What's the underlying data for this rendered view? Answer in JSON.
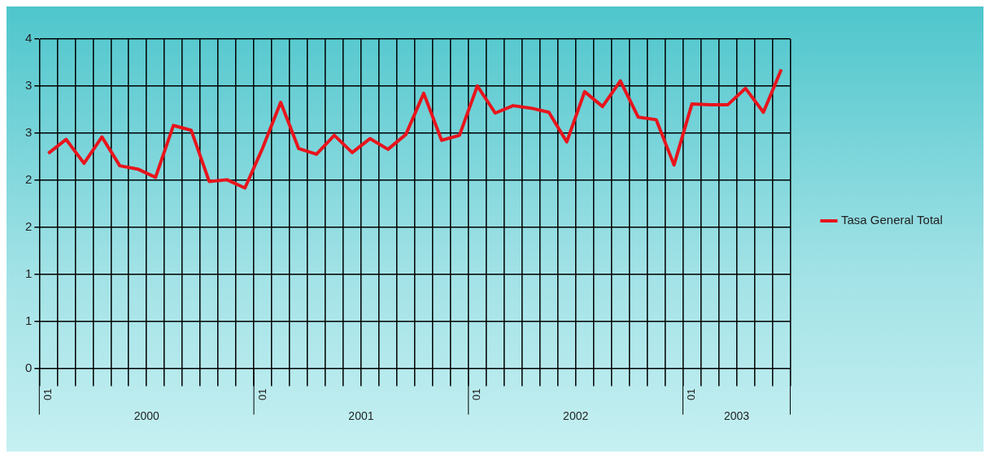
{
  "chart_data": {
    "type": "line",
    "categories": [
      "01",
      null,
      null,
      null,
      null,
      null,
      null,
      null,
      null,
      null,
      null,
      null,
      "01",
      null,
      null,
      null,
      null,
      null,
      null,
      null,
      null,
      null,
      null,
      null,
      "01",
      null,
      null,
      null,
      null,
      null,
      null,
      null,
      null,
      null,
      null,
      null,
      "01",
      null,
      null,
      null,
      null,
      null
    ],
    "series": [
      {
        "name": "Tasa General Total",
        "color": "#e8141c",
        "values": [
          2.61,
          2.78,
          2.49,
          2.81,
          2.46,
          2.42,
          2.32,
          2.95,
          2.89,
          2.27,
          2.29,
          2.19,
          2.68,
          3.23,
          2.67,
          2.6,
          2.83,
          2.62,
          2.79,
          2.66,
          2.84,
          3.34,
          2.77,
          2.83,
          3.43,
          3.1,
          3.19,
          3.16,
          3.11,
          2.75,
          3.36,
          3.18,
          3.49,
          3.05,
          3.02,
          2.47,
          3.21,
          3.2,
          3.2,
          3.4,
          3.11,
          3.63
        ]
      }
    ],
    "ylim": [
      0,
      4
    ],
    "yticks": [
      0,
      {
        "value": 0.57,
        "label": "1"
      },
      {
        "value": 1.14,
        "label": "1"
      },
      {
        "value": 1.71,
        "label": "2"
      },
      {
        "value": 2.29,
        "label": "2"
      },
      {
        "value": 2.86,
        "label": "3"
      },
      {
        "value": 3.43,
        "label": "3"
      },
      4
    ],
    "annotations": [
      "2000",
      "2001",
      "2002",
      "2003"
    ],
    "grid": true,
    "legend": "right",
    "marker": "none"
  }
}
